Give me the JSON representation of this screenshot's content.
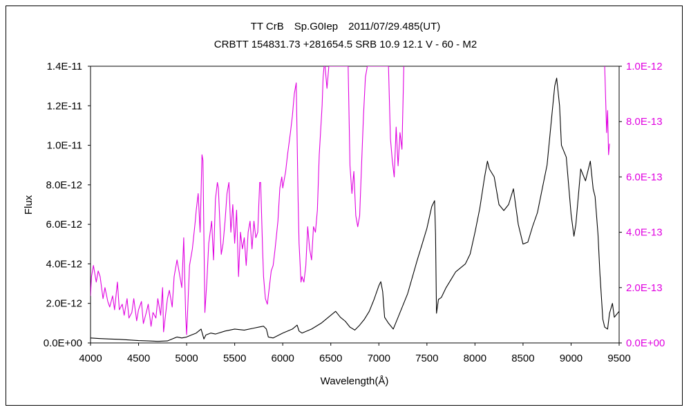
{
  "chart_data": {
    "type": "line",
    "title": "TT CrB　Sp.G0Iep　2011/07/29.485(UT)",
    "subtitle": "CRBTT 154831.73 +281654.5 SRB 10.9 12.1 V - 60 - M2",
    "xlabel": "Wavelength(Å)",
    "ylabel": "Flux",
    "xlim": [
      4000,
      9500
    ],
    "ylim": [
      0,
      1.4e-11
    ],
    "y2lim": [
      0,
      1e-12
    ],
    "x_ticks": [
      "4000",
      "4500",
      "5000",
      "5500",
      "6000",
      "6500",
      "7000",
      "7500",
      "8000",
      "8500",
      "9000",
      "9500"
    ],
    "y_ticks": [
      "0.0E+00",
      "2.0E-12",
      "4.0E-12",
      "6.0E-12",
      "8.0E-12",
      "1.0E-11",
      "1.2E-11",
      "1.4E-11"
    ],
    "y2_ticks": [
      "0.0E+00",
      "2.0E-13",
      "4.0E-13",
      "6.0E-13",
      "8.0E-13",
      "1.0E-12"
    ],
    "grid": false,
    "legend": "none",
    "series": [
      {
        "axis": "left",
        "color": "#000000",
        "x": [
          4000,
          4100,
          4200,
          4300,
          4400,
          4500,
          4600,
          4700,
          4800,
          4850,
          4900,
          4950,
          5000,
          5050,
          5100,
          5150,
          5180,
          5200,
          5250,
          5300,
          5400,
          5500,
          5600,
          5700,
          5750,
          5800,
          5830,
          5850,
          5900,
          6000,
          6100,
          6150,
          6170,
          6200,
          6300,
          6400,
          6500,
          6550,
          6600,
          6650,
          6700,
          6750,
          6800,
          6850,
          6900,
          6950,
          7000,
          7020,
          7040,
          7060,
          7100,
          7150,
          7200,
          7300,
          7400,
          7450,
          7500,
          7550,
          7580,
          7590,
          7600,
          7620,
          7650,
          7700,
          7750,
          7800,
          7850,
          7900,
          7950,
          8000,
          8050,
          8100,
          8130,
          8150,
          8200,
          8250,
          8300,
          8350,
          8400,
          8450,
          8500,
          8550,
          8600,
          8650,
          8700,
          8750,
          8800,
          8830,
          8850,
          8880,
          8900,
          8950,
          9000,
          9030,
          9050,
          9100,
          9150,
          9200,
          9230,
          9250,
          9280,
          9300,
          9330,
          9350,
          9380,
          9400,
          9430,
          9450,
          9500
        ],
        "y": [
          2.5e-13,
          2.2e-13,
          2e-13,
          1.8e-13,
          1.5e-13,
          1.2e-13,
          1e-13,
          8e-14,
          1e-13,
          2e-13,
          3e-13,
          2.5e-13,
          3e-13,
          4e-13,
          5e-13,
          7e-13,
          2e-13,
          4e-13,
          5e-13,
          4.5e-13,
          6e-13,
          7e-13,
          6.5e-13,
          7.5e-13,
          8e-13,
          8.5e-13,
          7e-13,
          3e-13,
          2.5e-13,
          5e-13,
          7e-13,
          9e-13,
          6e-13,
          5e-13,
          7e-13,
          1e-12,
          1.4e-12,
          1.6e-12,
          1.3e-12,
          1.1e-12,
          8e-13,
          6.5e-13,
          9e-13,
          1.2e-12,
          1.6e-12,
          2.2e-12,
          2.9e-12,
          3.1e-12,
          2.6e-12,
          1.3e-12,
          1e-12,
          7e-13,
          1.3e-12,
          2.5e-12,
          4.2e-12,
          5e-12,
          5.8e-12,
          6.9e-12,
          7.2e-12,
          5.5e-12,
          1.5e-12,
          2.2e-12,
          2.3e-12,
          2.8e-12,
          3.2e-12,
          3.6e-12,
          3.8e-12,
          4e-12,
          4.5e-12,
          5.6e-12,
          6.8e-12,
          8.4e-12,
          9.2e-12,
          8.8e-12,
          8.4e-12,
          7e-12,
          6.7e-12,
          7e-12,
          7.8e-12,
          6e-12,
          5e-12,
          5.1e-12,
          5.9e-12,
          6.6e-12,
          7.8e-12,
          9e-12,
          1.15e-11,
          1.3e-11,
          1.34e-11,
          1.2e-11,
          1e-11,
          9.4e-12,
          6.5e-12,
          5.4e-12,
          6e-12,
          8.8e-12,
          8.2e-12,
          9.2e-12,
          7.8e-12,
          7.4e-12,
          5.5e-12,
          3.5e-12,
          1.2e-12,
          8e-13,
          7e-13,
          1.5e-12,
          2e-12,
          1.3e-12,
          1.6e-12
        ]
      },
      {
        "axis": "right",
        "color": "#e000e0",
        "x": [
          4000,
          4010,
          4030,
          4060,
          4080,
          4100,
          4130,
          4150,
          4180,
          4200,
          4230,
          4250,
          4280,
          4300,
          4330,
          4350,
          4380,
          4400,
          4430,
          4450,
          4480,
          4500,
          4530,
          4550,
          4580,
          4600,
          4630,
          4650,
          4680,
          4700,
          4730,
          4750,
          4760,
          4780,
          4800,
          4820,
          4850,
          4870,
          4900,
          4920,
          4950,
          4970,
          4990,
          5000,
          5030,
          5060,
          5090,
          5100,
          5120,
          5140,
          5160,
          5170,
          5190,
          5210,
          5230,
          5260,
          5280,
          5300,
          5320,
          5330,
          5360,
          5380,
          5400,
          5420,
          5440,
          5460,
          5480,
          5500,
          5520,
          5540,
          5560,
          5580,
          5600,
          5620,
          5640,
          5660,
          5680,
          5700,
          5720,
          5740,
          5760,
          5770,
          5790,
          5800,
          5820,
          5840,
          5860,
          5880,
          5900,
          5920,
          5950,
          5970,
          5990,
          6000,
          6030,
          6050,
          6080,
          6100,
          6120,
          6140,
          6160,
          6170,
          6190,
          6200,
          6220,
          6240,
          6260,
          6280,
          6300,
          6320,
          6340,
          6360,
          6380,
          6400,
          6410,
          6420,
          6430,
          6440,
          6460,
          6480,
          6500,
          6520,
          6540,
          6560,
          6580,
          6600,
          6620,
          6640,
          6660,
          6680,
          6700,
          6720,
          6740,
          6760,
          6780,
          6800,
          6820,
          6840,
          6860,
          6880,
          6900,
          6920,
          6940,
          6960,
          6980,
          7000,
          7020,
          7040,
          7060,
          7080,
          7100,
          7120,
          7140,
          7160,
          7180,
          7200,
          7220,
          7240,
          7260
        ],
        "y": [
          1.7e-13,
          2.4e-13,
          2.8e-13,
          2.2e-13,
          2.6e-13,
          2.4e-13,
          1.6e-13,
          2e-13,
          1.5e-13,
          1.3e-13,
          1.7e-13,
          1.2e-13,
          2.2e-13,
          1.2e-13,
          1.4e-13,
          1e-13,
          1.6e-13,
          9e-14,
          1.1e-13,
          1.6e-13,
          8e-14,
          1.2e-13,
          1.5e-13,
          7e-14,
          1.1e-13,
          1.4e-13,
          6e-14,
          1.1e-13,
          9e-14,
          1.6e-13,
          1e-13,
          2e-13,
          4e-14,
          1e-13,
          1.6e-13,
          1.9e-13,
          1.3e-13,
          2.4e-13,
          3e-13,
          2.6e-13,
          2e-13,
          3.8e-13,
          1e-13,
          3e-14,
          2.8e-13,
          3.4e-13,
          4.4e-13,
          4.8e-13,
          5.4e-13,
          4e-13,
          6.8e-13,
          6.6e-13,
          1.1e-13,
          2.2e-13,
          3.6e-13,
          4.4e-13,
          3e-13,
          5.2e-13,
          5.8e-13,
          5.6e-13,
          3.2e-13,
          3.6e-13,
          4.4e-13,
          5.4e-13,
          5.8e-13,
          4e-13,
          5e-13,
          3.6e-13,
          4.8e-13,
          2.4e-13,
          4e-13,
          3.4e-13,
          3.8e-13,
          2.8e-13,
          4e-13,
          4.4e-13,
          3.4e-13,
          4.4e-13,
          3.8e-13,
          4e-13,
          5.8e-13,
          5.8e-13,
          3.4e-13,
          2.4e-13,
          1.6e-13,
          1.4e-13,
          2e-13,
          2.6e-13,
          2.8e-13,
          3.4e-13,
          4.4e-13,
          5.6e-13,
          6e-13,
          5.6e-13,
          6.2e-13,
          6.8e-13,
          7.6e-13,
          8.2e-13,
          9e-13,
          9.4e-13,
          5.2e-13,
          3.6e-13,
          2.2e-13,
          2.4e-13,
          2.2e-13,
          2.8e-13,
          4.2e-13,
          3.4e-13,
          3e-13,
          4.2e-13,
          4e-13,
          4.8e-13,
          6.8e-13,
          8e-13,
          8.6e-13,
          9.6e-13,
          1e-12,
          1e-12,
          9.2e-13,
          1e-12,
          1e-12,
          1e-12,
          1e-12,
          1e-12,
          1e-12,
          1e-12,
          1e-12,
          1e-12,
          1e-12,
          1e-12,
          6.4e-13,
          5.4e-13,
          6.2e-13,
          4.6e-13,
          4.2e-13,
          4.6e-13,
          6.4e-13,
          8.2e-13,
          9.6e-13,
          1e-12,
          1e-12,
          1e-12,
          1e-12,
          1e-12,
          1e-12,
          1e-12,
          1e-12,
          1e-12,
          1e-12,
          1e-12,
          1e-12,
          7.4e-13,
          6.6e-13,
          6e-13,
          7.8e-13,
          6.4e-13,
          7.6e-13,
          7e-13,
          1e-12
        ]
      },
      {
        "axis": "right",
        "color": "#e000e0",
        "x": [
          9350,
          9360,
          9370,
          9380,
          9390,
          9400
        ],
        "y": [
          1e-12,
          8.8e-13,
          7.6e-13,
          8.4e-13,
          6.8e-13,
          7.2e-13
        ]
      }
    ]
  }
}
